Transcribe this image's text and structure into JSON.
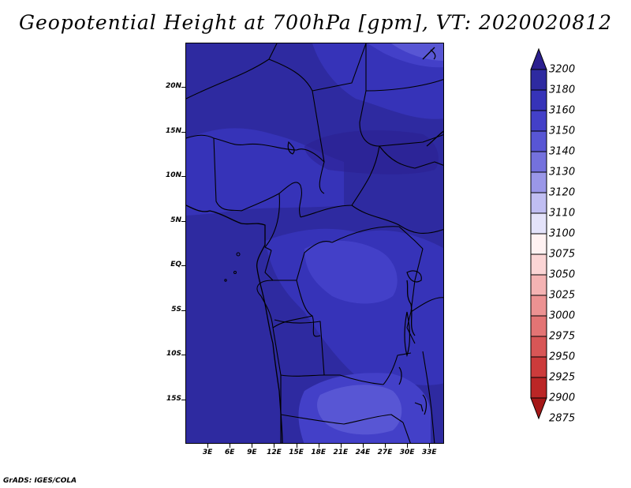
{
  "title": "Geopotential Height at 700hPa [gpm], VT: 2020020812",
  "footer": "GrADS: IGES/COLA",
  "map": {
    "y_ticks": [
      {
        "label": "20N",
        "lat": 20
      },
      {
        "label": "15N",
        "lat": 15
      },
      {
        "label": "10N",
        "lat": 10
      },
      {
        "label": "5N",
        "lat": 5
      },
      {
        "label": "EQ",
        "lat": 0
      },
      {
        "label": "5S",
        "lat": -5
      },
      {
        "label": "10S",
        "lat": -10
      },
      {
        "label": "15S",
        "lat": -15
      }
    ],
    "x_ticks": [
      {
        "label": "3E",
        "lon": 3
      },
      {
        "label": "6E",
        "lon": 6
      },
      {
        "label": "9E",
        "lon": 9
      },
      {
        "label": "12E",
        "lon": 12
      },
      {
        "label": "15E",
        "lon": 15
      },
      {
        "label": "18E",
        "lon": 18
      },
      {
        "label": "21E",
        "lon": 21
      },
      {
        "label": "24E",
        "lon": 24
      },
      {
        "label": "27E",
        "lon": 27
      },
      {
        "label": "30E",
        "lon": 30
      },
      {
        "label": "33E",
        "lon": 33
      }
    ],
    "lon_range": [
      0,
      35
    ],
    "lat_range": [
      -20,
      25
    ]
  },
  "colorbar": {
    "levels": [
      {
        "label": "3200",
        "color": "#2b1f8f"
      },
      {
        "label": "3180",
        "color": "#2e2aa0"
      },
      {
        "label": "3160",
        "color": "#3633b8"
      },
      {
        "label": "3150",
        "color": "#4340c8"
      },
      {
        "label": "3140",
        "color": "#5856d4"
      },
      {
        "label": "3130",
        "color": "#7471dd"
      },
      {
        "label": "3120",
        "color": "#9a97e8"
      },
      {
        "label": "3110",
        "color": "#c0bef2"
      },
      {
        "label": "3100",
        "color": "#e4e3fa"
      },
      {
        "label": "3075",
        "color": "#fff2f2"
      },
      {
        "label": "3050",
        "color": "#fbd5d5"
      },
      {
        "label": "3025",
        "color": "#f4b3b3"
      },
      {
        "label": "3000",
        "color": "#ec9292"
      },
      {
        "label": "2975",
        "color": "#e37474"
      },
      {
        "label": "2950",
        "color": "#d85656"
      },
      {
        "label": "2925",
        "color": "#cc3b3b"
      },
      {
        "label": "2900",
        "color": "#bb2626"
      },
      {
        "label": "2875",
        "color": "#a51818"
      }
    ]
  }
}
